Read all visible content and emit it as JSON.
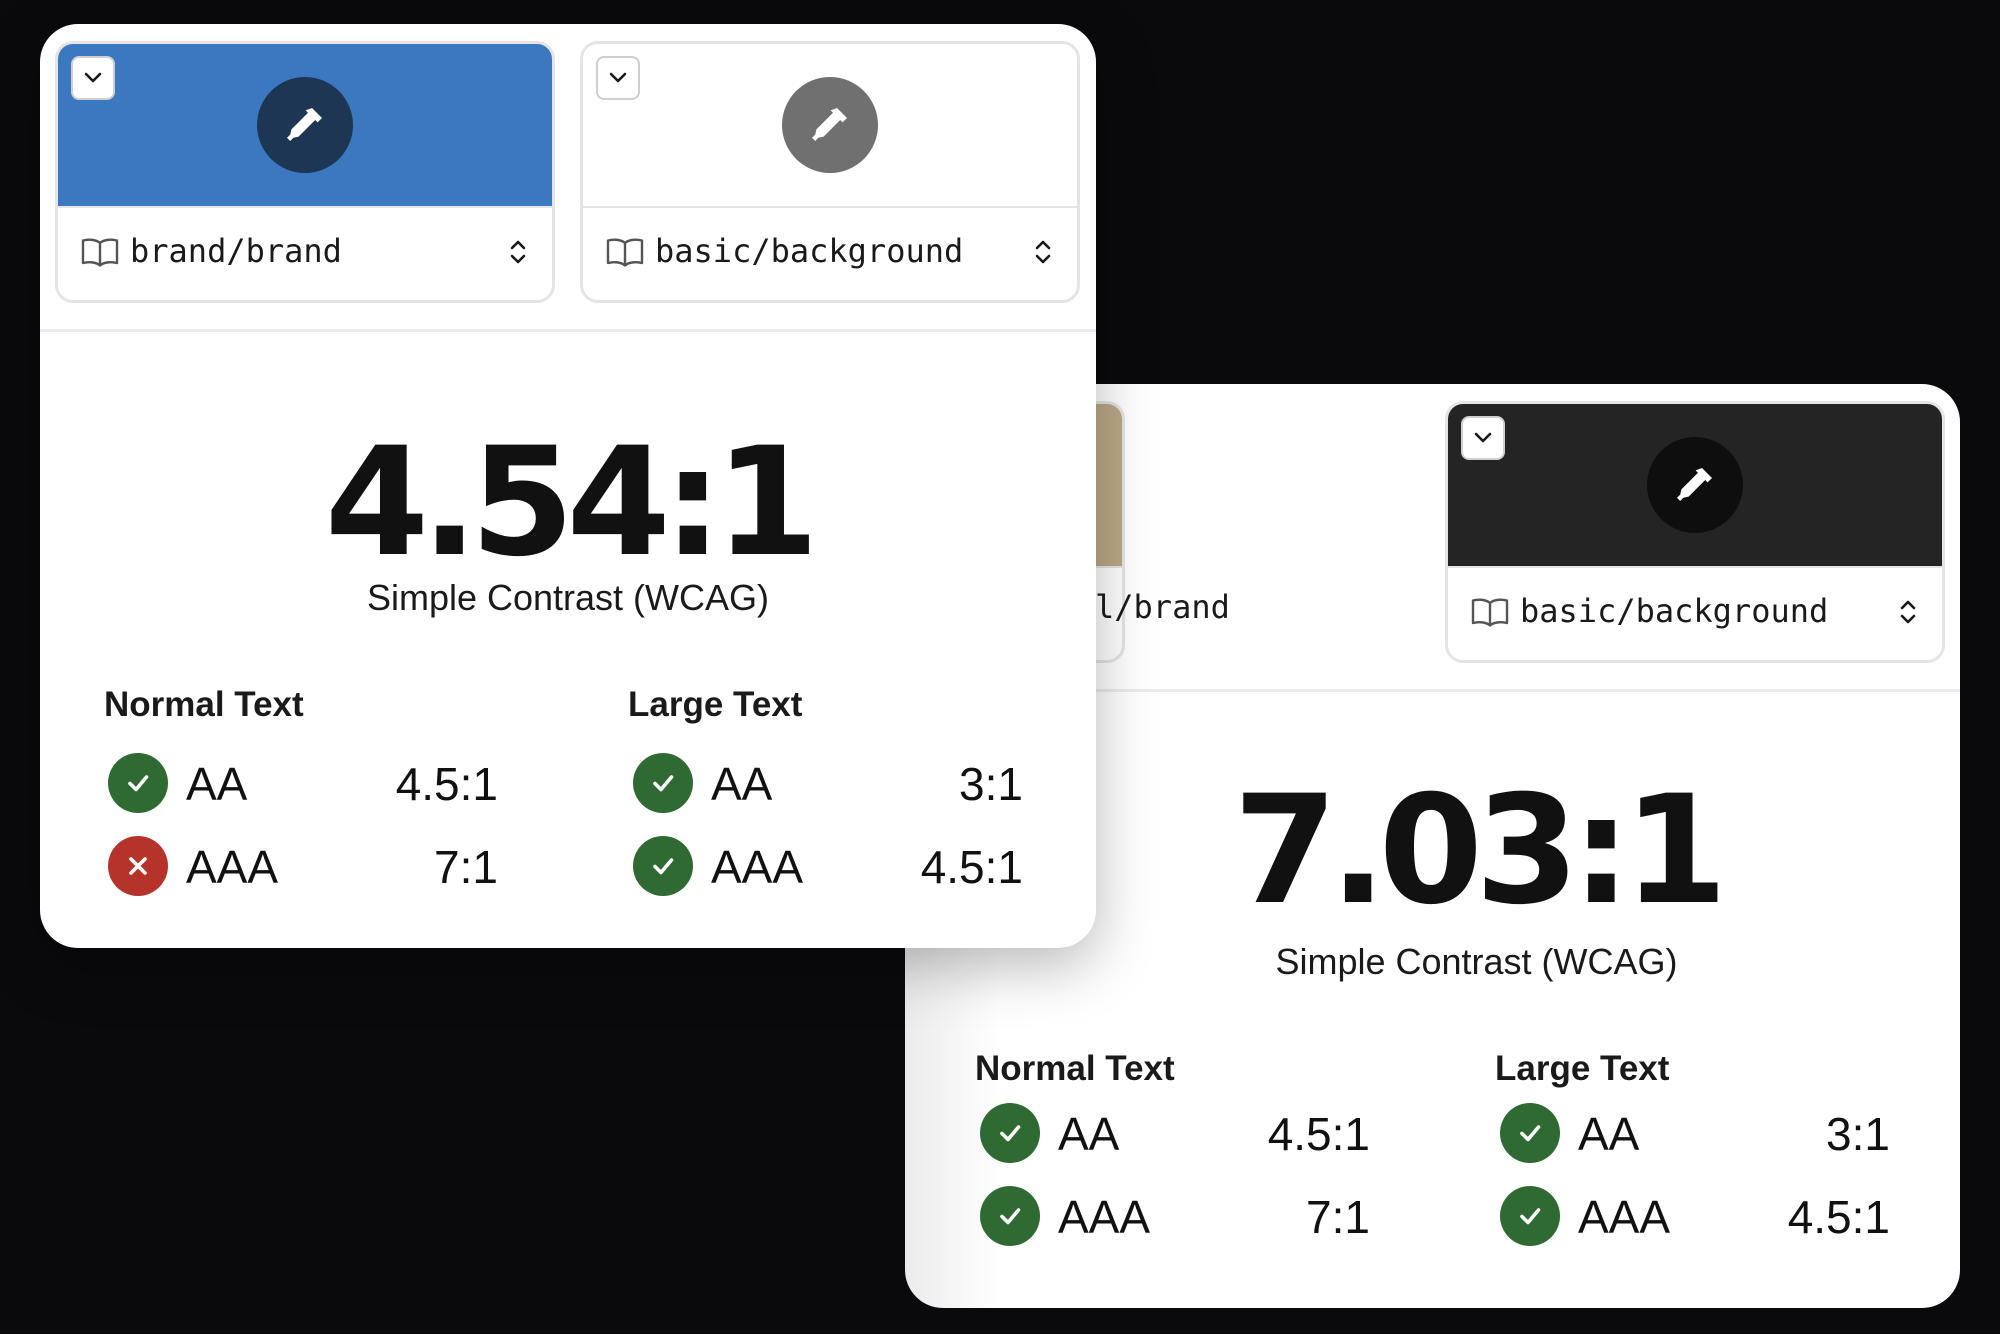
{
  "colors": {
    "brand_blue": "#3c78bf",
    "brand_tan": "#bba987",
    "background_white": "#ffffff",
    "background_dark": "#242424",
    "pass": "#2f6a32",
    "fail": "#b6332b"
  },
  "icons": {
    "collapse": "chevron-down-icon",
    "picker": "eyedropper-icon",
    "library": "book-icon",
    "stepper": "chevron-up-down-icon",
    "pass": "check-icon",
    "fail": "x-icon"
  },
  "panel_front": {
    "foreground": {
      "token": "brand/brand",
      "swatch_color": "#3c78bf",
      "eyedropper_bg": "#1c3654"
    },
    "background": {
      "token": "basic/background",
      "swatch_color": "#ffffff",
      "eyedropper_bg": "#707070"
    },
    "ratio": "4.54:1",
    "ratio_label": "Simple Contrast (WCAG)",
    "normal_text": {
      "header": "Normal Text",
      "rows": [
        {
          "level": "AA",
          "required": "4.5:1",
          "pass": true
        },
        {
          "level": "AAA",
          "required": "7:1",
          "pass": false
        }
      ]
    },
    "large_text": {
      "header": "Large Text",
      "rows": [
        {
          "level": "AA",
          "required": "3:1",
          "pass": true
        },
        {
          "level": "AAA",
          "required": "4.5:1",
          "pass": true
        }
      ]
    }
  },
  "panel_back": {
    "foreground": {
      "token": "l/brand",
      "swatch_color": "#bba987",
      "eyedropper_bg": "#5a5449"
    },
    "background": {
      "token": "basic/background",
      "swatch_color": "#242424",
      "eyedropper_bg": "#0e0e0e"
    },
    "ratio": "7.03:1",
    "ratio_label": "Simple Contrast (WCAG)",
    "normal_text": {
      "header": "Normal Text",
      "rows": [
        {
          "level": "AA",
          "required": "4.5:1",
          "pass": true
        },
        {
          "level": "AAA",
          "required": "7:1",
          "pass": true
        }
      ]
    },
    "large_text": {
      "header": "Large Text",
      "rows": [
        {
          "level": "AA",
          "required": "3:1",
          "pass": true
        },
        {
          "level": "AAA",
          "required": "4.5:1",
          "pass": true
        }
      ]
    }
  }
}
